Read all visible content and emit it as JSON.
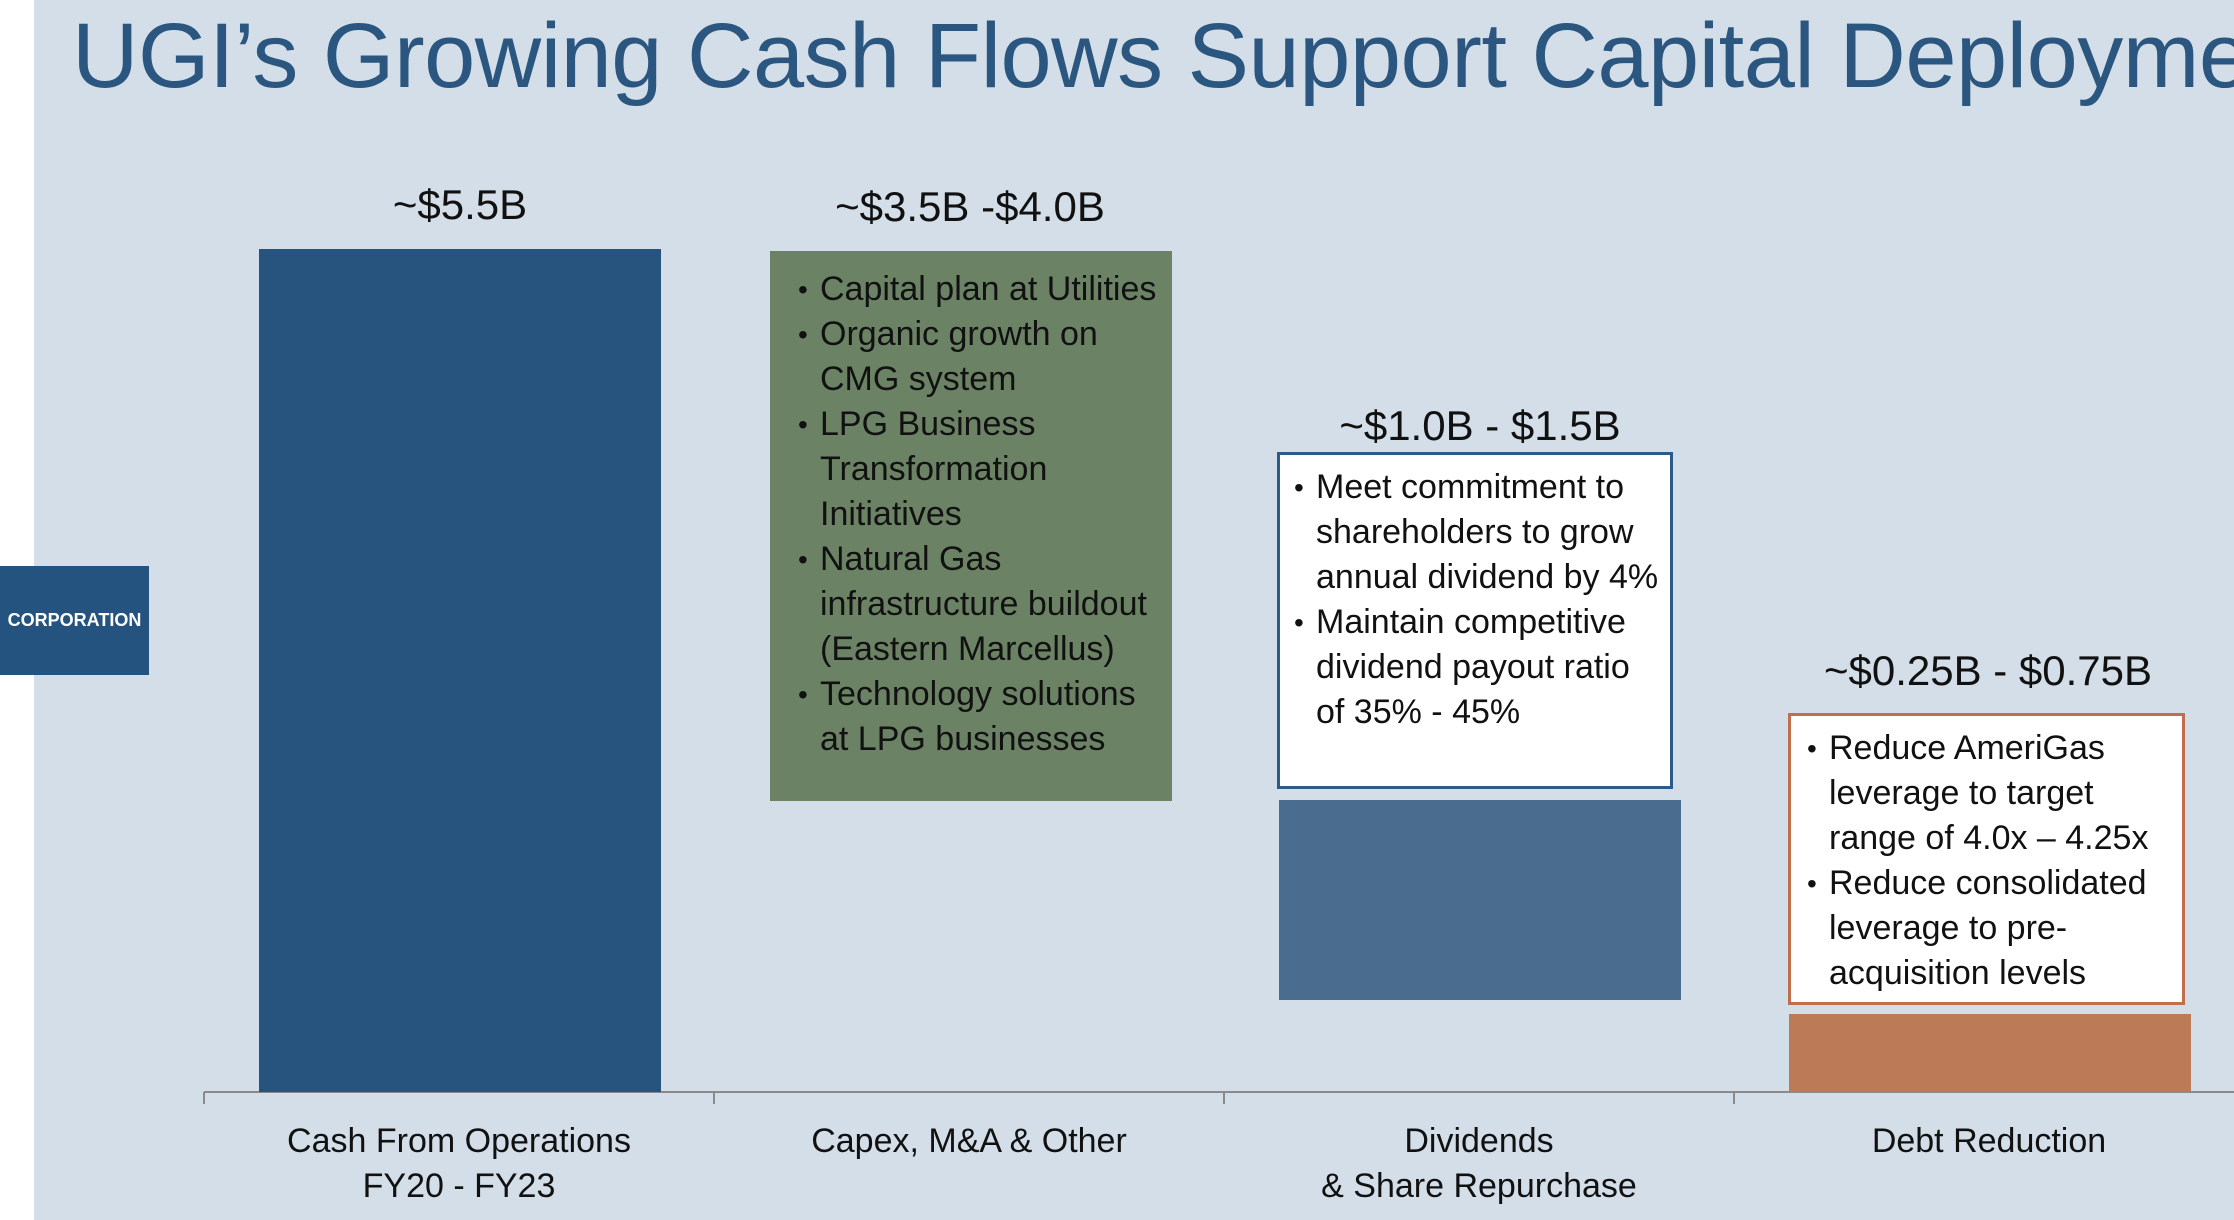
{
  "header": {
    "title": "UGI’s Growing Cash Flows Support Capital Deployment"
  },
  "logo": {
    "label": "CORPORATION"
  },
  "chart_data": {
    "type": "bar",
    "title": "UGI’s Growing Cash Flows Support Capital Deployment",
    "unit": "$B",
    "ylim": [
      0,
      5.5
    ],
    "grid": false,
    "categories": [
      {
        "name": "Cash From Operations",
        "sub": "FY20 - FY23",
        "label": "~$5.5B",
        "low": 5.5,
        "high": 5.5,
        "color": "#26547f"
      },
      {
        "name": "Capex, M&A & Other",
        "sub": "",
        "label": "~$3.5B -$4.0B",
        "low": 3.5,
        "high": 4.0,
        "color": "#6b8265"
      },
      {
        "name": "Dividends",
        "sub": "& Share Repurchase",
        "label": "~$1.0B - $1.5B",
        "low": 1.0,
        "high": 1.5,
        "color": "#4a6d8f"
      },
      {
        "name": "Debt Reduction",
        "sub": "",
        "label": "~$0.25B - $0.75B",
        "low": 0.25,
        "high": 0.75,
        "color": "#bd7a56"
      }
    ],
    "annotations": {
      "capex": [
        "Capital plan at Utilities",
        "Organic growth on CMG system",
        "LPG Business Transformation Initiatives",
        "Natural Gas infrastructure buildout (Eastern Marcellus)",
        "Technology solutions at LPG businesses"
      ],
      "dividends": [
        "Meet commitment to shareholders to grow annual dividend by 4%",
        "Maintain competitive dividend payout ratio of 35% - 45%"
      ],
      "debt": [
        "Reduce AmeriGas leverage to target range of 4.0x – 4.25x",
        "Reduce consolidated leverage to pre-acquisition levels"
      ]
    }
  }
}
